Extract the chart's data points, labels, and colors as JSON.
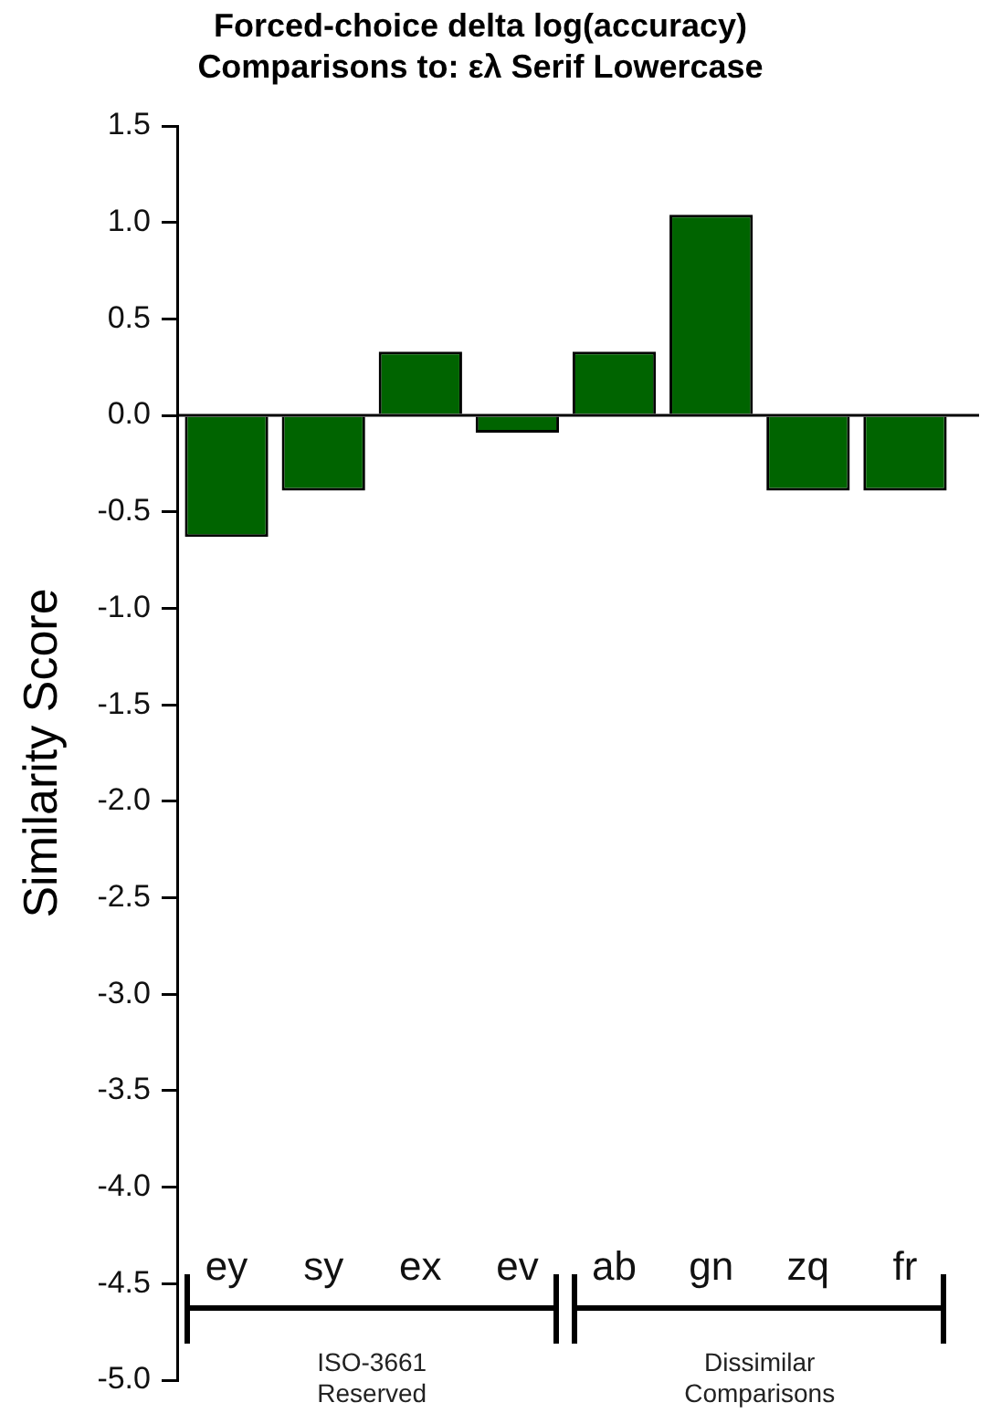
{
  "chart_data": {
    "type": "bar",
    "title": "Forced-choice delta log(accuracy)\nComparisons to: ελ Serif Lowercase",
    "ylabel": "Similarity Score",
    "categories": [
      "ey",
      "sy",
      "ex",
      "ev",
      "ab",
      "gn",
      "zq",
      "fr"
    ],
    "values": [
      -0.63,
      -0.39,
      0.33,
      -0.09,
      0.33,
      1.04,
      -0.39,
      -0.39
    ],
    "color": "#006400",
    "ylim": [
      -5.0,
      1.5
    ],
    "yticks": [
      {
        "value": 1.5,
        "label": "1.5"
      },
      {
        "value": 1.0,
        "label": "1.0"
      },
      {
        "value": 0.5,
        "label": "0.5"
      },
      {
        "value": 0.0,
        "label": "0.0"
      },
      {
        "value": -0.5,
        "label": "-0.5"
      },
      {
        "value": -1.0,
        "label": "-1.0"
      },
      {
        "value": -1.5,
        "label": "-1.5"
      },
      {
        "value": -2.0,
        "label": "-2.0"
      },
      {
        "value": -2.5,
        "label": "-2.5"
      },
      {
        "value": -3.0,
        "label": "-3.0"
      },
      {
        "value": -3.5,
        "label": "-3.5"
      },
      {
        "value": -4.0,
        "label": "-4.0"
      },
      {
        "value": -4.5,
        "label": "-4.5"
      },
      {
        "value": -5.0,
        "label": "-5.0"
      }
    ],
    "ref_lines": [
      {
        "axis": "y",
        "value": 0,
        "color": "#000000"
      }
    ],
    "annotations": [
      "ISO-3661 Reserved",
      "Dissimilar Comparisons"
    ],
    "grid": false,
    "legend": false
  }
}
